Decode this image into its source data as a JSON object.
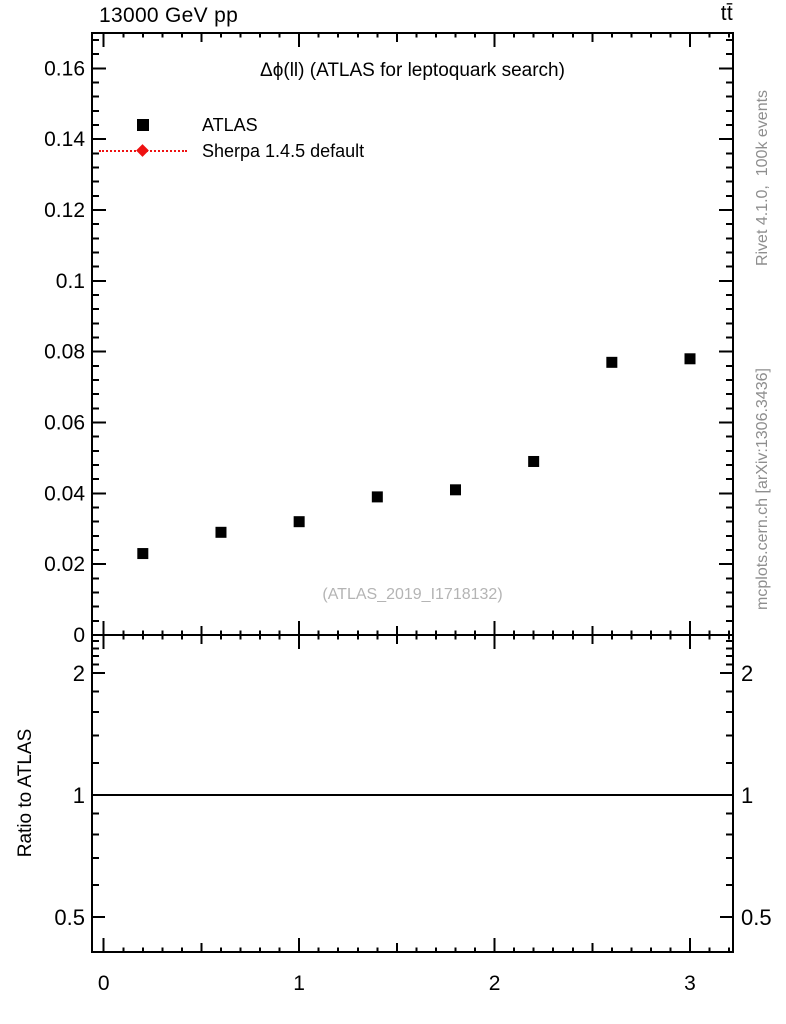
{
  "header": {
    "left_title": "13000 GeV pp",
    "right_title": "tt̄"
  },
  "main_panel": {
    "title": "Δϕ(ll) (ATLAS for leptoquark search)",
    "watermark": "(ATLAS_2019_I1718132)"
  },
  "legend": {
    "items": [
      {
        "label": "ATLAS",
        "marker": "black-square"
      },
      {
        "label": "Sherpa 1.4.5 default",
        "marker": "red-diamond-dotted-line"
      }
    ]
  },
  "side_notes": {
    "top": "Rivet 4.1.0,  100k events",
    "bottom": "mcplots.cern.ch [arXiv:1306.3436]"
  },
  "ratio_panel": {
    "ylabel": "Ratio to ATLAS"
  },
  "colors": {
    "data_marker": "#000000",
    "mc_marker": "#ee1111",
    "side_text": "#8e8e8e",
    "watermark": "#b4b4b4",
    "axis": "#000000"
  },
  "chart_data": [
    {
      "type": "scatter",
      "panel": "main",
      "title": "Δϕ(ll) (ATLAS for leptoquark search)",
      "xlabel": "",
      "ylabel": "",
      "xlim": [
        -0.06,
        3.22
      ],
      "ylim": [
        0,
        0.17
      ],
      "xticks": [
        0,
        1,
        2,
        3
      ],
      "xticklabels": [
        "0",
        "1",
        "2",
        "3"
      ],
      "x_minor_step": 0.1,
      "x_medium_step": 0.5,
      "yticks": [
        0,
        0.02,
        0.04,
        0.06,
        0.08,
        0.1,
        0.12,
        0.14,
        0.16
      ],
      "yticklabels": [
        "0",
        "0.02",
        "0.04",
        "0.06",
        "0.08",
        "0.1",
        "0.12",
        "0.14",
        "0.16"
      ],
      "y_minor_step": 0.004,
      "grid": false,
      "legend_position": "top-left",
      "series": [
        {
          "name": "ATLAS",
          "marker": "filled-square",
          "color": "#000000",
          "x": [
            0.2,
            0.6,
            1.0,
            1.4,
            1.8,
            2.2,
            2.6,
            3.0
          ],
          "y": [
            0.023,
            0.029,
            0.032,
            0.039,
            0.041,
            0.049,
            0.077,
            0.078
          ]
        },
        {
          "name": "Sherpa 1.4.5 default",
          "marker": "filled-diamond",
          "line": "dotted",
          "color": "#ee1111",
          "x": [],
          "y": []
        }
      ]
    },
    {
      "type": "line",
      "panel": "ratio",
      "ylabel": "Ratio to ATLAS",
      "yscale": "log",
      "ylim": [
        0.41,
        2.48
      ],
      "yticks": [
        0.5,
        1,
        2
      ],
      "yticklabels": [
        "0.5",
        "1",
        "2"
      ],
      "y_minor_ticks": [
        0.6,
        0.7,
        0.8,
        0.9,
        1.2,
        1.4,
        1.6,
        1.8,
        2.1,
        2.2,
        2.3,
        2.4
      ],
      "xticks": [
        0,
        1,
        2,
        3
      ],
      "xticklabels": [
        "0",
        "1",
        "2",
        "3"
      ],
      "grid": false,
      "reference_line_y": 1
    }
  ]
}
